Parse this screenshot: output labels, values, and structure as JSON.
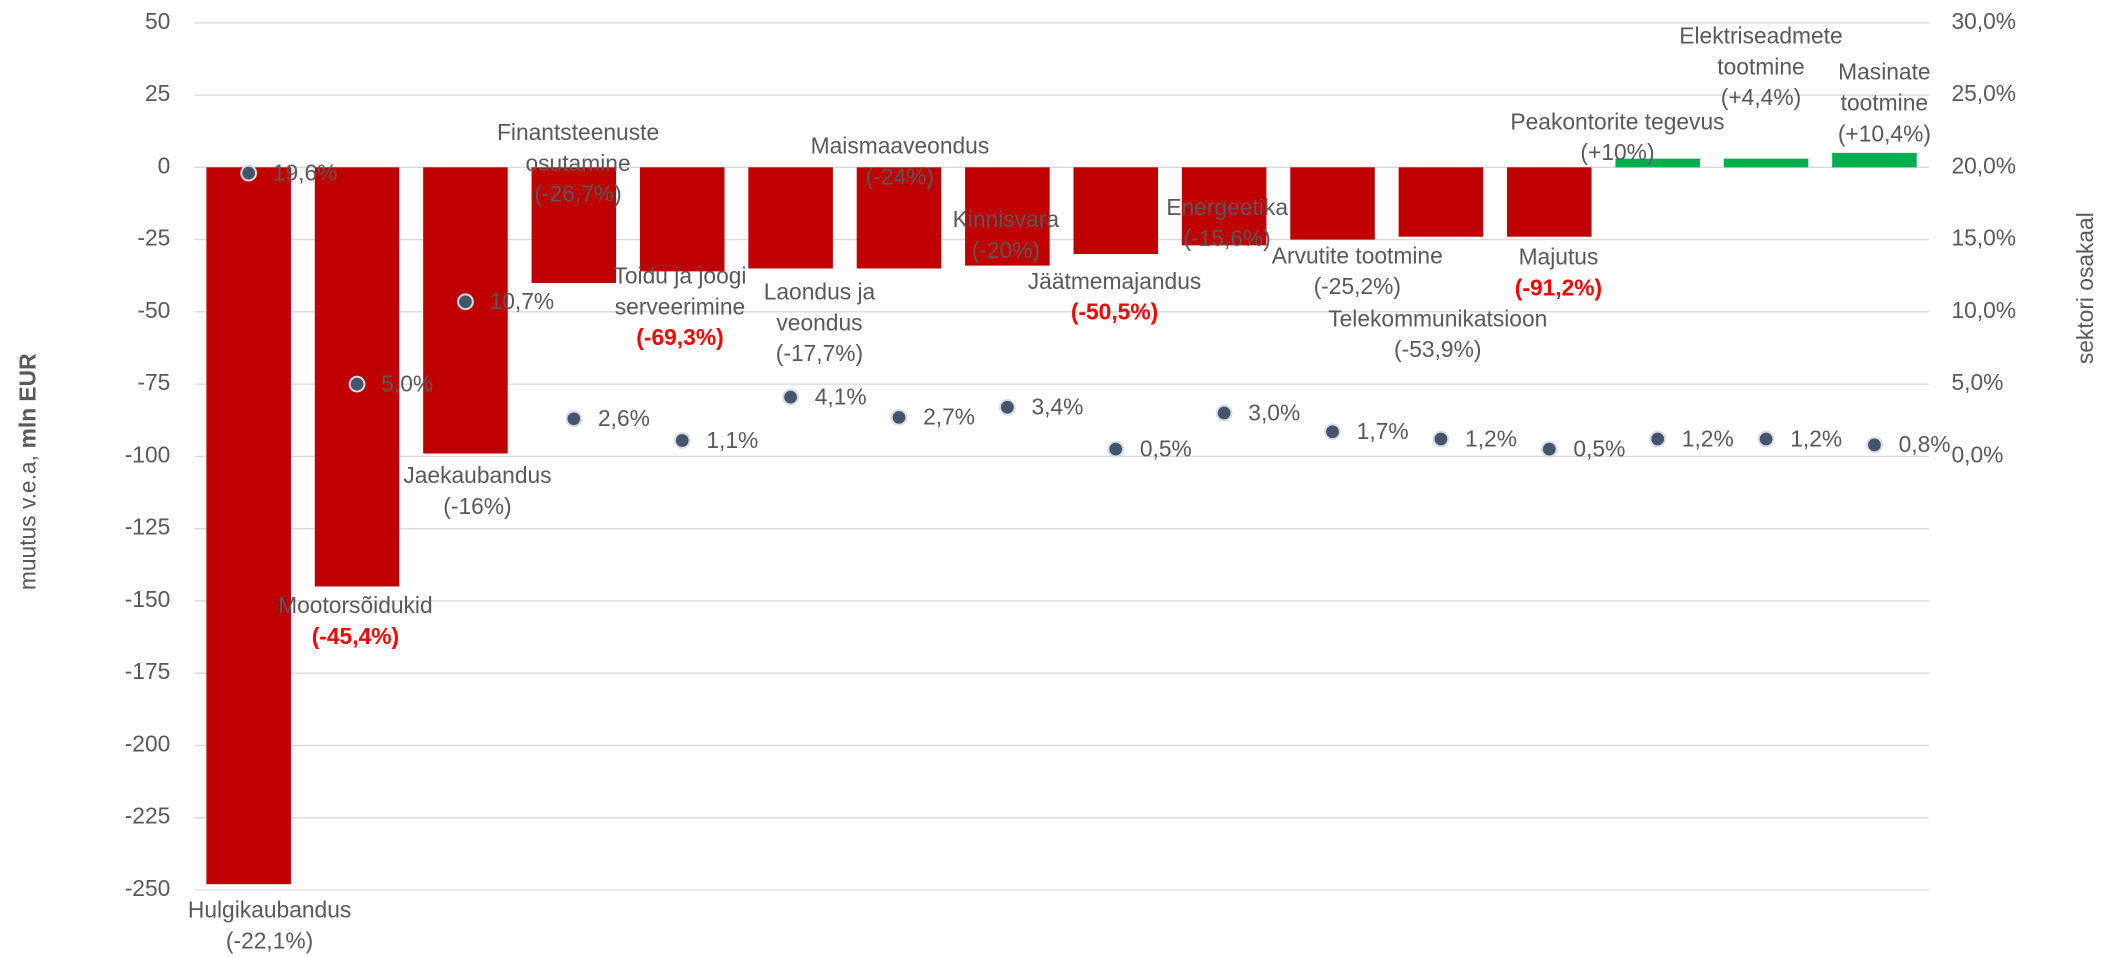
{
  "chart_data": {
    "type": "bar",
    "ylabel": [
      "muutus v.e.a,",
      "mln EUR"
    ],
    "y2label": "sektori osakaal",
    "categories": [
      [
        "Hulgikaubandus"
      ],
      [
        "Mootorsõidukid"
      ],
      [
        "Jaekaubandus"
      ],
      [
        "Finantsteenuste",
        "osutamine"
      ],
      [
        "Toidu ja joogi",
        "serveerimine"
      ],
      [
        "Laondus ja",
        "veondus"
      ],
      [
        "Maismaaveondus"
      ],
      [
        "Kinnisvara"
      ],
      [
        "Jäätmemajandus"
      ],
      [
        "Energeetika"
      ],
      [
        "Arvutite tootmine"
      ],
      [
        "Telekommunikatsioon"
      ],
      [
        "Majutus"
      ],
      [
        "Peakontorite tegevus"
      ],
      [
        "Elektriseadmete",
        "tootmine"
      ],
      [
        "Masinate",
        "tootmine"
      ]
    ],
    "change_labels": [
      "(-22,1%)",
      "(-45,4%)",
      "(-16%)",
      "(-26,7%)",
      "(-69,3%)",
      "(-17,7%)",
      "(-24%)",
      "(-20%)",
      "(-50,5%)",
      "(-15,6%)",
      "(-25,2%)",
      "(-53,9%)",
      "(-91,2%)",
      "(+10%)",
      "(+4,4%)",
      "(+10,4%)"
    ],
    "change_highlight": [
      false,
      true,
      false,
      false,
      true,
      false,
      false,
      false,
      true,
      false,
      false,
      false,
      true,
      false,
      false,
      false
    ],
    "highlight_color": "#ff0000",
    "series": [
      {
        "values": [
          -248,
          -145,
          -99,
          -40,
          -36,
          -35,
          -35,
          -34,
          -30,
          -27,
          -25,
          -24,
          -24,
          3,
          3,
          5
        ],
        "color_negative": "#c00000",
        "color_positive": "#00b050"
      },
      {
        "type": "scatter",
        "axis": "y2",
        "color": "#44546a",
        "values": [
          19.6,
          5.0,
          10.7,
          2.6,
          1.1,
          4.1,
          2.7,
          3.4,
          0.5,
          3.0,
          1.7,
          1.2,
          0.5,
          1.2,
          1.2,
          0.8
        ],
        "value_labels": [
          "19,6%",
          "5,0%",
          "10,7%",
          "2,6%",
          "1,1%",
          "4,1%",
          "2,7%",
          "3,4%",
          "0,5%",
          "3,0%",
          "1,7%",
          "1,2%",
          "0,5%",
          "1,2%",
          "1,2%",
          "0,8%"
        ]
      }
    ],
    "ylim": [
      -250,
      50
    ],
    "yticks": [
      -250,
      -225,
      -200,
      -175,
      -150,
      -125,
      -100,
      -75,
      -50,
      -25,
      0,
      25,
      50
    ],
    "y2lim": [
      -30,
      30
    ],
    "y2ticks": [
      {
        "value": 0,
        "label": "0,0%"
      },
      {
        "value": 5,
        "label": "5,0%"
      },
      {
        "value": 10,
        "label": "10,0%"
      },
      {
        "value": 15,
        "label": "15,0%"
      },
      {
        "value": 20,
        "label": "20,0%"
      },
      {
        "value": 25,
        "label": "25,0%"
      },
      {
        "value": 30,
        "label": "30,0%"
      }
    ],
    "grid": true
  }
}
